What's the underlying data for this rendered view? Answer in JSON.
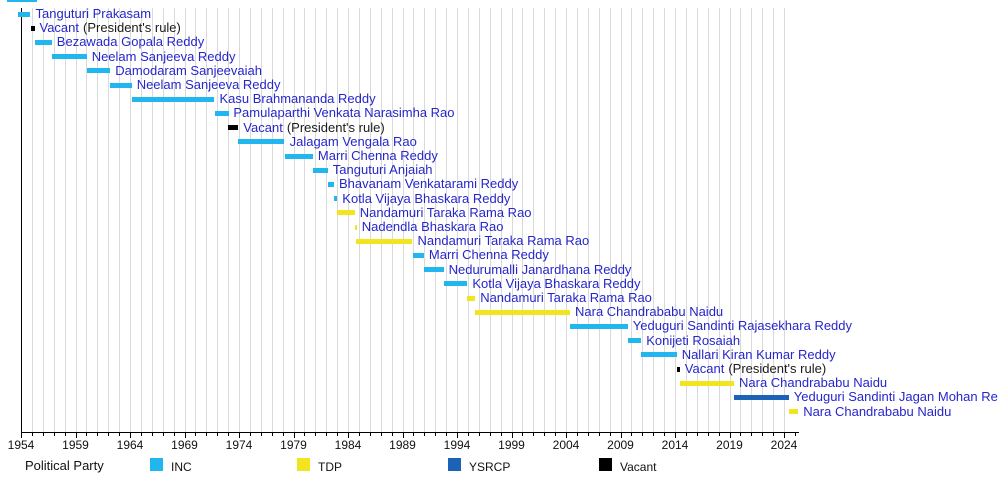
{
  "chart_data": {
    "type": "timeline",
    "title": "",
    "xlabel": "",
    "ylabel": "",
    "x_range": [
      1953.75,
      2025.4
    ],
    "grid": true,
    "x_ticks_major": [
      "1954",
      "1959",
      "1964",
      "1969",
      "1974",
      "1979",
      "1984",
      "1989",
      "1994",
      "1999",
      "2004",
      "2009",
      "2014",
      "2019",
      "2024"
    ],
    "party_colors": {
      "INC": "#21b6ed",
      "TDP": "#f2e51f",
      "YSRCP": "#1c63b8",
      "Vacant": "#000000"
    },
    "text_colors": {
      "name_blue": "#2626cb",
      "suffix_black": "#1a1a1a"
    },
    "rows": [
      {
        "label": "Tanguturi Prakasam",
        "party": "INC",
        "start": 1953.75,
        "end": 1954.87
      },
      {
        "label": "Vacant",
        "suffix": "(President's rule)",
        "party": "Vacant",
        "start": 1954.87,
        "end": 1955.24
      },
      {
        "label": "Bezawada Gopala Reddy",
        "party": "INC",
        "start": 1955.24,
        "end": 1956.83
      },
      {
        "label": "Neelam Sanjeeva Reddy",
        "party": "INC",
        "start": 1956.83,
        "end": 1960.03
      },
      {
        "label": "Damodaram Sanjeevaiah",
        "party": "INC",
        "start": 1960.03,
        "end": 1962.19
      },
      {
        "label": "Neelam Sanjeeva Reddy",
        "party": "INC",
        "start": 1962.19,
        "end": 1964.16
      },
      {
        "label": "Kasu Brahmananda Reddy",
        "party": "INC",
        "start": 1964.16,
        "end": 1971.75
      },
      {
        "label": "Pamulaparthi Venkata Narasimha Rao",
        "party": "INC",
        "start": 1971.75,
        "end": 1973.03
      },
      {
        "label": "Vacant",
        "suffix": "(President's rule)",
        "party": "Vacant",
        "start": 1973.03,
        "end": 1973.94
      },
      {
        "label": "Jalagam Vengala Rao",
        "party": "INC",
        "start": 1973.94,
        "end": 1978.18
      },
      {
        "label": "Marri Chenna Reddy",
        "party": "INC",
        "start": 1978.18,
        "end": 1980.78
      },
      {
        "label": "Tanguturi Anjaiah",
        "party": "INC",
        "start": 1980.78,
        "end": 1982.15
      },
      {
        "label": "Bhavanam Venkatarami Reddy",
        "party": "INC",
        "start": 1982.15,
        "end": 1982.72
      },
      {
        "label": "Kotla Vijaya Bhaskara Reddy",
        "party": "INC",
        "start": 1982.72,
        "end": 1983.02
      },
      {
        "label": "Nandamuri Taraka Rama Rao",
        "party": "TDP",
        "start": 1983.02,
        "end": 1984.62
      },
      {
        "label": "Nadendla Bhaskara Rao",
        "party": "TDP",
        "start": 1984.62,
        "end": 1984.71
      },
      {
        "label": "Nandamuri Taraka Rama Rao",
        "party": "TDP",
        "start": 1984.71,
        "end": 1989.92
      },
      {
        "label": "Marri Chenna Reddy",
        "party": "INC",
        "start": 1989.92,
        "end": 1990.96
      },
      {
        "label": "Nedurumalli Janardhana Reddy",
        "party": "INC",
        "start": 1990.96,
        "end": 1992.77
      },
      {
        "label": "Kotla Vijaya Bhaskara Reddy",
        "party": "INC",
        "start": 1992.77,
        "end": 1994.95
      },
      {
        "label": "Nandamuri Taraka Rama Rao",
        "party": "TDP",
        "start": 1994.95,
        "end": 1995.67
      },
      {
        "label": "Nara Chandrababu Naidu",
        "party": "TDP",
        "start": 1995.67,
        "end": 2004.37
      },
      {
        "label": "Yeduguri Sandinti Rajasekhara Reddy",
        "party": "INC",
        "start": 2004.37,
        "end": 2009.67
      },
      {
        "label": "Konijeti Rosaiah",
        "party": "INC",
        "start": 2009.67,
        "end": 2010.9
      },
      {
        "label": "Nallari Kiran Kumar Reddy",
        "party": "INC",
        "start": 2010.9,
        "end": 2014.16
      },
      {
        "label": "Vacant",
        "suffix": "(President's rule)",
        "party": "Vacant",
        "start": 2014.16,
        "end": 2014.44
      },
      {
        "label": "Nara Chandrababu Naidu",
        "party": "TDP",
        "start": 2014.44,
        "end": 2019.41
      },
      {
        "label": "Yeduguri Sandinti Jagan Mohan Re",
        "party": "YSRCP",
        "start": 2019.41,
        "end": 2024.44
      },
      {
        "label": "Nara Chandrababu Naidu",
        "party": "TDP",
        "start": 2024.44,
        "end": 2025.3
      }
    ],
    "legend": {
      "title": "Political Party",
      "position": "bottom",
      "items": [
        {
          "label": "INC",
          "party": "INC"
        },
        {
          "label": "TDP",
          "party": "TDP"
        },
        {
          "label": "YSRCP",
          "party": "YSRCP"
        },
        {
          "label": "Vacant",
          "party": "Vacant"
        }
      ]
    }
  }
}
